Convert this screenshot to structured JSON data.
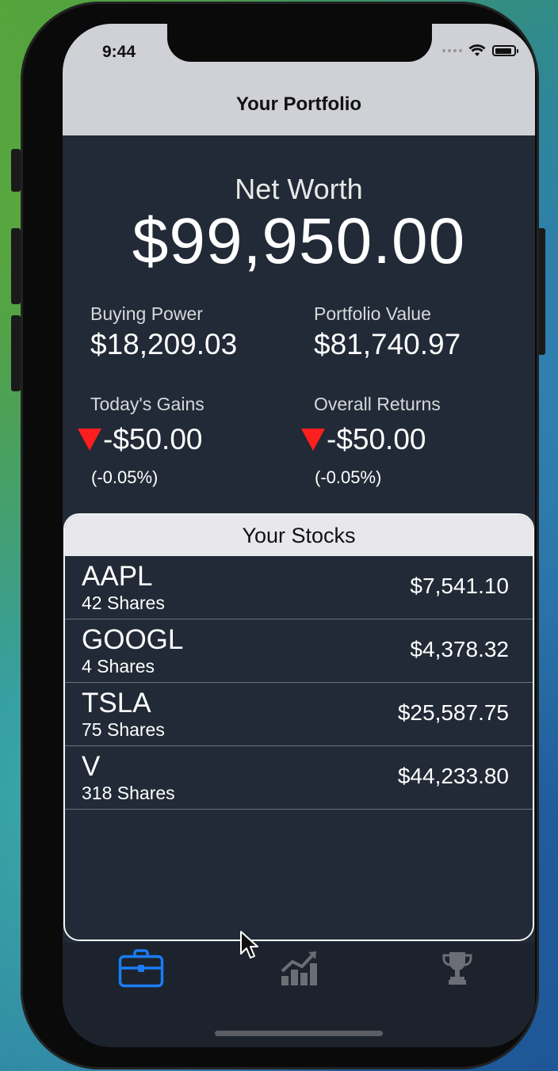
{
  "status_bar": {
    "time": "9:44"
  },
  "nav": {
    "title": "Your Portfolio"
  },
  "net_worth": {
    "label": "Net Worth",
    "value": "$99,950.00"
  },
  "stats": {
    "buying_power": {
      "label": "Buying Power",
      "value": "$18,209.03"
    },
    "portfolio_value": {
      "label": "Portfolio Value",
      "value": "$81,740.97"
    },
    "todays_gains": {
      "label": "Today's Gains",
      "value": "-$50.00",
      "percent": "(-0.05%)",
      "direction": "down"
    },
    "overall_returns": {
      "label": "Overall Returns",
      "value": "-$50.00",
      "percent": "(-0.05%)",
      "direction": "down"
    }
  },
  "stocks": {
    "header": "Your Stocks",
    "rows": [
      {
        "ticker": "AAPL",
        "shares": "42 Shares",
        "value": "$7,541.10"
      },
      {
        "ticker": "GOOGL",
        "shares": "4 Shares",
        "value": "$4,378.32"
      },
      {
        "ticker": "TSLA",
        "shares": "75 Shares",
        "value": "$25,587.75"
      },
      {
        "ticker": "V",
        "shares": "318 Shares",
        "value": "$44,233.80"
      }
    ]
  },
  "tabbar": {
    "tabs": [
      {
        "icon": "briefcase-icon",
        "active": true
      },
      {
        "icon": "chart-icon",
        "active": false
      },
      {
        "icon": "trophy-icon",
        "active": false
      }
    ]
  },
  "colors": {
    "accent": "#1a7cf5",
    "loss": "#ff1e1e",
    "background": "#212a36",
    "nav_bar": "#d0d1d6"
  }
}
